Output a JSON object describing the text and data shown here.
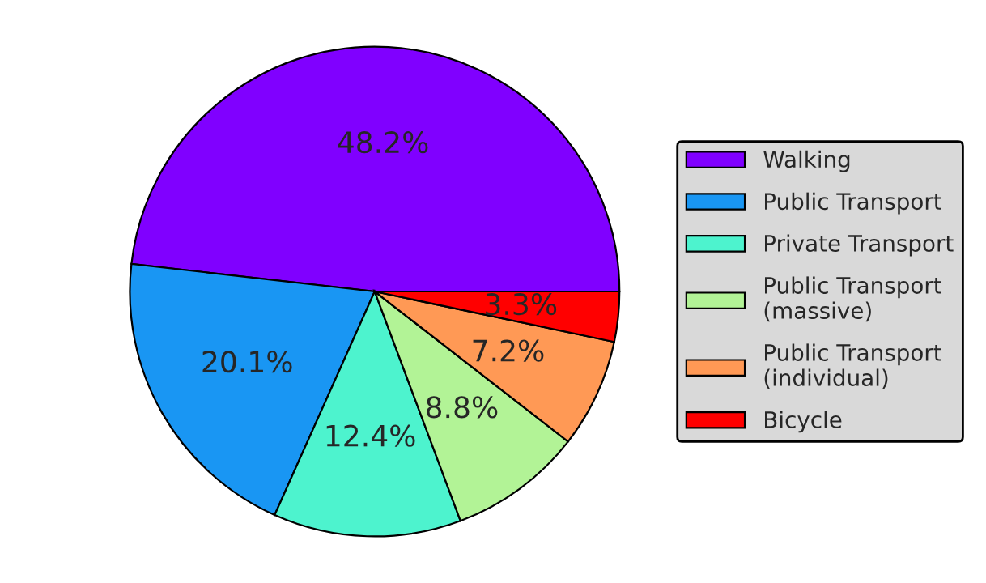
{
  "chart_data": {
    "type": "pie",
    "categories": [
      "Walking",
      "Public Transport",
      "Private Transport",
      "Public Transport\n(massive)",
      "Public Transport\n(individual)",
      "Bicycle"
    ],
    "values": [
      48.2,
      20.1,
      12.4,
      8.8,
      7.2,
      3.3
    ],
    "colors": [
      "#8000ff",
      "#1996f3",
      "#4df3ce",
      "#b2f396",
      "#ff9955",
      "#ff0000"
    ],
    "value_labels": [
      "48.2%",
      "20.1%",
      "12.4%",
      "8.8%",
      "7.2%",
      "3.3%"
    ],
    "legend": "right"
  }
}
